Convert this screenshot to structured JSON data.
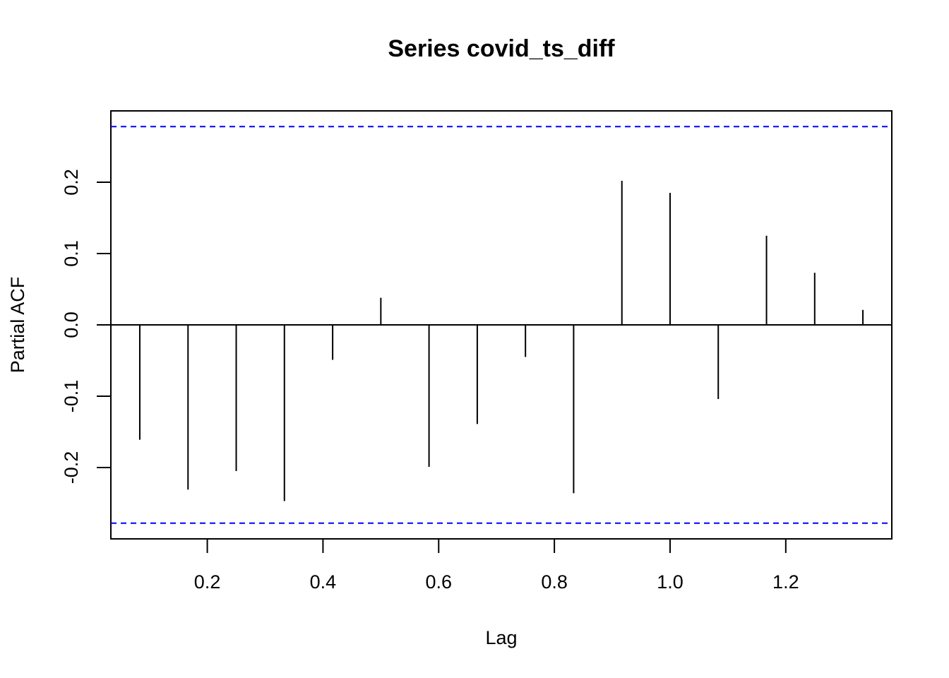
{
  "chart_data": {
    "type": "bar",
    "title": "Series  covid_ts_diff",
    "xlabel": "Lag",
    "ylabel": "Partial ACF",
    "xlim": [
      0.0333,
      1.3833
    ],
    "ylim": [
      -0.3,
      0.3
    ],
    "xticks": [
      0.2,
      0.4,
      0.6,
      0.8,
      1.0,
      1.2
    ],
    "xtick_labels": [
      "0.2",
      "0.4",
      "0.6",
      "0.8",
      "1.0",
      "1.2"
    ],
    "yticks": [
      -0.2,
      -0.1,
      0.0,
      0.1,
      0.2
    ],
    "ytick_labels": [
      "-0.2",
      "-0.1",
      "0.0",
      "0.1",
      "0.2"
    ],
    "x": [
      0.0833,
      0.1667,
      0.25,
      0.3333,
      0.4167,
      0.5,
      0.5833,
      0.6667,
      0.75,
      0.8333,
      0.9167,
      1.0,
      1.0833,
      1.1667,
      1.25,
      1.3333
    ],
    "values": [
      -0.161,
      -0.231,
      -0.205,
      -0.247,
      -0.049,
      0.038,
      -0.199,
      -0.139,
      -0.045,
      -0.236,
      0.202,
      0.185,
      -0.104,
      0.125,
      0.073,
      0.021
    ],
    "confidence_bound": 0.278,
    "grid": false,
    "colors": {
      "bars": "#000000",
      "confidence": "#0000ff",
      "axes": "#000000"
    }
  }
}
